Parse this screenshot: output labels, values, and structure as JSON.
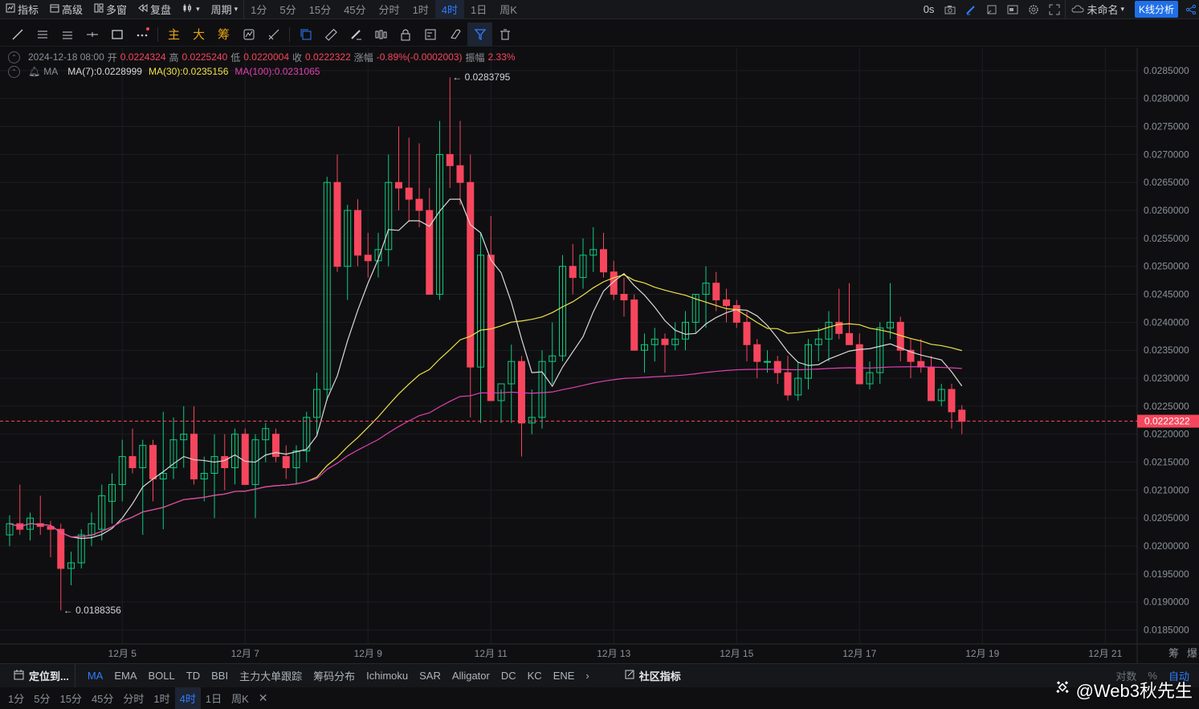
{
  "topbar": {
    "indicators": "指标",
    "advanced": "高级",
    "multi_window": "多窗",
    "replay": "复盘",
    "period": "周期",
    "intervals": [
      "1分",
      "5分",
      "15分",
      "45分",
      "分时",
      "1时",
      "4时",
      "1日",
      "周K"
    ],
    "active_interval": "4时",
    "countdown": "0s",
    "layout_name": "未命名",
    "kline_analysis": "K线分析"
  },
  "drawbar": {
    "main": "主",
    "big": "大",
    "chips": "筹"
  },
  "info": {
    "datetime": "2024-12-18 08:00",
    "open_label": "开",
    "open": "0.0224324",
    "high_label": "高",
    "high": "0.0225240",
    "low_label": "低",
    "low": "0.0220004",
    "close_label": "收",
    "close": "0.0222322",
    "change_label": "涨幅",
    "change": "-0.89%(-0.0002003)",
    "amp_label": "振幅",
    "amp": "2.33%",
    "ma_label": "MA",
    "ma7": "MA(7):0.0228999",
    "ma30": "MA(30):0.0235156",
    "ma100": "MA(100):0.0231065"
  },
  "chart_data": {
    "type": "candlestick",
    "interval": "4h",
    "ylim": [
      0.01825,
      0.0289
    ],
    "y_ticks": [
      "0.0285000",
      "0.0280000",
      "0.0275000",
      "0.0270000",
      "0.0265000",
      "0.0260000",
      "0.0255000",
      "0.0250000",
      "0.0245000",
      "0.0240000",
      "0.0235000",
      "0.0230000",
      "0.0225000",
      "0.0220000",
      "0.0215000",
      "0.0210000",
      "0.0205000",
      "0.0200000",
      "0.0195000",
      "0.0190000",
      "0.0185000"
    ],
    "x_ticks": [
      "12月 5",
      "12月 7",
      "12月 9",
      "12月 11",
      "12月 13",
      "12月 15",
      "12月 17",
      "12月 19",
      "12月 21"
    ],
    "last_price": "0.0222322",
    "max_label": "← 0.0283795",
    "min_label": "← 0.0188356",
    "colors": {
      "up": "#0ecb81",
      "down": "#f6465d",
      "ma7": "#d9d9d9",
      "ma30": "#f0e14a",
      "ma100": "#e040b0",
      "grid": "#1c1e22",
      "last": "#f6465d"
    },
    "ohlc": [
      [
        0.0202,
        0.02055,
        0.02,
        0.0204
      ],
      [
        0.0204,
        0.0211,
        0.0202,
        0.0203
      ],
      [
        0.0203,
        0.0206,
        0.0201,
        0.0205
      ],
      [
        0.0204,
        0.0209,
        0.0202,
        0.02035
      ],
      [
        0.02035,
        0.02045,
        0.0198,
        0.0203
      ],
      [
        0.0203,
        0.0204,
        0.01885,
        0.0196
      ],
      [
        0.0196,
        0.0199,
        0.0193,
        0.0197
      ],
      [
        0.0197,
        0.0203,
        0.0196,
        0.0202
      ],
      [
        0.0202,
        0.0206,
        0.02,
        0.0204
      ],
      [
        0.0203,
        0.0211,
        0.0201,
        0.0209
      ],
      [
        0.0208,
        0.0213,
        0.0204,
        0.0211
      ],
      [
        0.0211,
        0.0219,
        0.0208,
        0.0216
      ],
      [
        0.0216,
        0.0221,
        0.0213,
        0.0214
      ],
      [
        0.0214,
        0.0219,
        0.0202,
        0.0218
      ],
      [
        0.0218,
        0.0219,
        0.0208,
        0.0212
      ],
      [
        0.0212,
        0.0224,
        0.0203,
        0.0213
      ],
      [
        0.0214,
        0.0223,
        0.0212,
        0.0219
      ],
      [
        0.0219,
        0.0225,
        0.0214,
        0.022
      ],
      [
        0.022,
        0.0225,
        0.0211,
        0.0212
      ],
      [
        0.0212,
        0.0216,
        0.0208,
        0.0213
      ],
      [
        0.0213,
        0.022,
        0.0205,
        0.0216
      ],
      [
        0.0216,
        0.022,
        0.021,
        0.0214
      ],
      [
        0.0214,
        0.0221,
        0.0211,
        0.022
      ],
      [
        0.022,
        0.0221,
        0.0211,
        0.0211
      ],
      [
        0.0211,
        0.022,
        0.0205,
        0.0219
      ],
      [
        0.0219,
        0.0222,
        0.0215,
        0.0221
      ],
      [
        0.022,
        0.0221,
        0.0215,
        0.0216
      ],
      [
        0.0216,
        0.0218,
        0.0212,
        0.0214
      ],
      [
        0.0214,
        0.0218,
        0.0211,
        0.0217
      ],
      [
        0.0217,
        0.0224,
        0.0215,
        0.0223
      ],
      [
        0.0223,
        0.0231,
        0.022,
        0.0228
      ],
      [
        0.0228,
        0.0266,
        0.0226,
        0.0265
      ],
      [
        0.0265,
        0.027,
        0.0249,
        0.025
      ],
      [
        0.025,
        0.0261,
        0.0244,
        0.026
      ],
      [
        0.026,
        0.0262,
        0.025,
        0.0252
      ],
      [
        0.0252,
        0.0256,
        0.0248,
        0.0251
      ],
      [
        0.0251,
        0.0256,
        0.0248,
        0.0253
      ],
      [
        0.0253,
        0.027,
        0.025,
        0.0265
      ],
      [
        0.0265,
        0.0275,
        0.026,
        0.0264
      ],
      [
        0.0264,
        0.0273,
        0.0258,
        0.0262
      ],
      [
        0.0262,
        0.0272,
        0.0257,
        0.026
      ],
      [
        0.026,
        0.0264,
        0.0246,
        0.0245
      ],
      [
        0.0245,
        0.0276,
        0.0244,
        0.027
      ],
      [
        0.027,
        0.02838,
        0.0264,
        0.0268
      ],
      [
        0.0268,
        0.0276,
        0.0261,
        0.0265
      ],
      [
        0.0265,
        0.027,
        0.0223,
        0.0232
      ],
      [
        0.0232,
        0.0256,
        0.0222,
        0.0252
      ],
      [
        0.0252,
        0.0259,
        0.0226,
        0.0226
      ],
      [
        0.0226,
        0.0228,
        0.0222,
        0.0229
      ],
      [
        0.0229,
        0.0236,
        0.0222,
        0.0233
      ],
      [
        0.0233,
        0.0234,
        0.0216,
        0.0222
      ],
      [
        0.0222,
        0.0228,
        0.022,
        0.0223
      ],
      [
        0.0223,
        0.0235,
        0.0221,
        0.0233
      ],
      [
        0.0233,
        0.024,
        0.0229,
        0.0234
      ],
      [
        0.0234,
        0.0252,
        0.0233,
        0.025
      ],
      [
        0.025,
        0.0254,
        0.0245,
        0.0248
      ],
      [
        0.0248,
        0.0255,
        0.0246,
        0.0252
      ],
      [
        0.0252,
        0.0257,
        0.0249,
        0.0253
      ],
      [
        0.0253,
        0.0256,
        0.0248,
        0.0249
      ],
      [
        0.0249,
        0.0251,
        0.0244,
        0.0245
      ],
      [
        0.0245,
        0.0248,
        0.0241,
        0.0244
      ],
      [
        0.0244,
        0.0245,
        0.0235,
        0.0235
      ],
      [
        0.0235,
        0.0238,
        0.0231,
        0.0236
      ],
      [
        0.0236,
        0.0239,
        0.0233,
        0.0237
      ],
      [
        0.0237,
        0.0238,
        0.0231,
        0.0236
      ],
      [
        0.0236,
        0.024,
        0.0235,
        0.0237
      ],
      [
        0.0237,
        0.0242,
        0.0235,
        0.024
      ],
      [
        0.024,
        0.0245,
        0.0238,
        0.0245
      ],
      [
        0.0245,
        0.025,
        0.0239,
        0.0247
      ],
      [
        0.0247,
        0.0249,
        0.0242,
        0.0244
      ],
      [
        0.0244,
        0.0246,
        0.024,
        0.0243
      ],
      [
        0.0243,
        0.0244,
        0.0239,
        0.024
      ],
      [
        0.024,
        0.0242,
        0.0233,
        0.0236
      ],
      [
        0.0236,
        0.0237,
        0.023,
        0.0233
      ],
      [
        0.0233,
        0.0235,
        0.0231,
        0.0233
      ],
      [
        0.0233,
        0.0234,
        0.0229,
        0.0231
      ],
      [
        0.0231,
        0.0234,
        0.0226,
        0.0227
      ],
      [
        0.0227,
        0.0233,
        0.0226,
        0.023
      ],
      [
        0.023,
        0.0237,
        0.0228,
        0.0236
      ],
      [
        0.0236,
        0.0239,
        0.0233,
        0.0237
      ],
      [
        0.0237,
        0.0242,
        0.0233,
        0.024
      ],
      [
        0.024,
        0.0246,
        0.0237,
        0.0238
      ],
      [
        0.0238,
        0.0247,
        0.0236,
        0.0236
      ],
      [
        0.0236,
        0.0238,
        0.0229,
        0.0229
      ],
      [
        0.0229,
        0.0233,
        0.0228,
        0.0231
      ],
      [
        0.0231,
        0.024,
        0.0229,
        0.0239
      ],
      [
        0.0239,
        0.0247,
        0.0237,
        0.024
      ],
      [
        0.024,
        0.0241,
        0.0233,
        0.0235
      ],
      [
        0.0235,
        0.0237,
        0.023,
        0.0233
      ],
      [
        0.0233,
        0.0237,
        0.0231,
        0.0232
      ],
      [
        0.0232,
        0.0234,
        0.0226,
        0.0226
      ],
      [
        0.0226,
        0.0229,
        0.0225,
        0.0228
      ],
      [
        0.0228,
        0.0229,
        0.0221,
        0.0224
      ],
      [
        0.02243,
        0.02252,
        0.022,
        0.02223
      ]
    ]
  },
  "bottombar": {
    "locate": "定位到...",
    "indicators": [
      "MA",
      "EMA",
      "BOLL",
      "TD",
      "BBI",
      "主力大单跟踪",
      "筹码分布",
      "Ichimoku",
      "SAR",
      "Alligator",
      "DC",
      "KC",
      "ENE"
    ],
    "active_indicator": "MA",
    "community": "社区指标",
    "log": "对数",
    "percent": "%",
    "auto": "自动"
  },
  "intervalbar": {
    "items": [
      "1分",
      "5分",
      "15分",
      "45分",
      "分时",
      "1时",
      "4时",
      "1日",
      "周K"
    ],
    "active": "4时"
  },
  "watermark": "@Web3秋先生"
}
